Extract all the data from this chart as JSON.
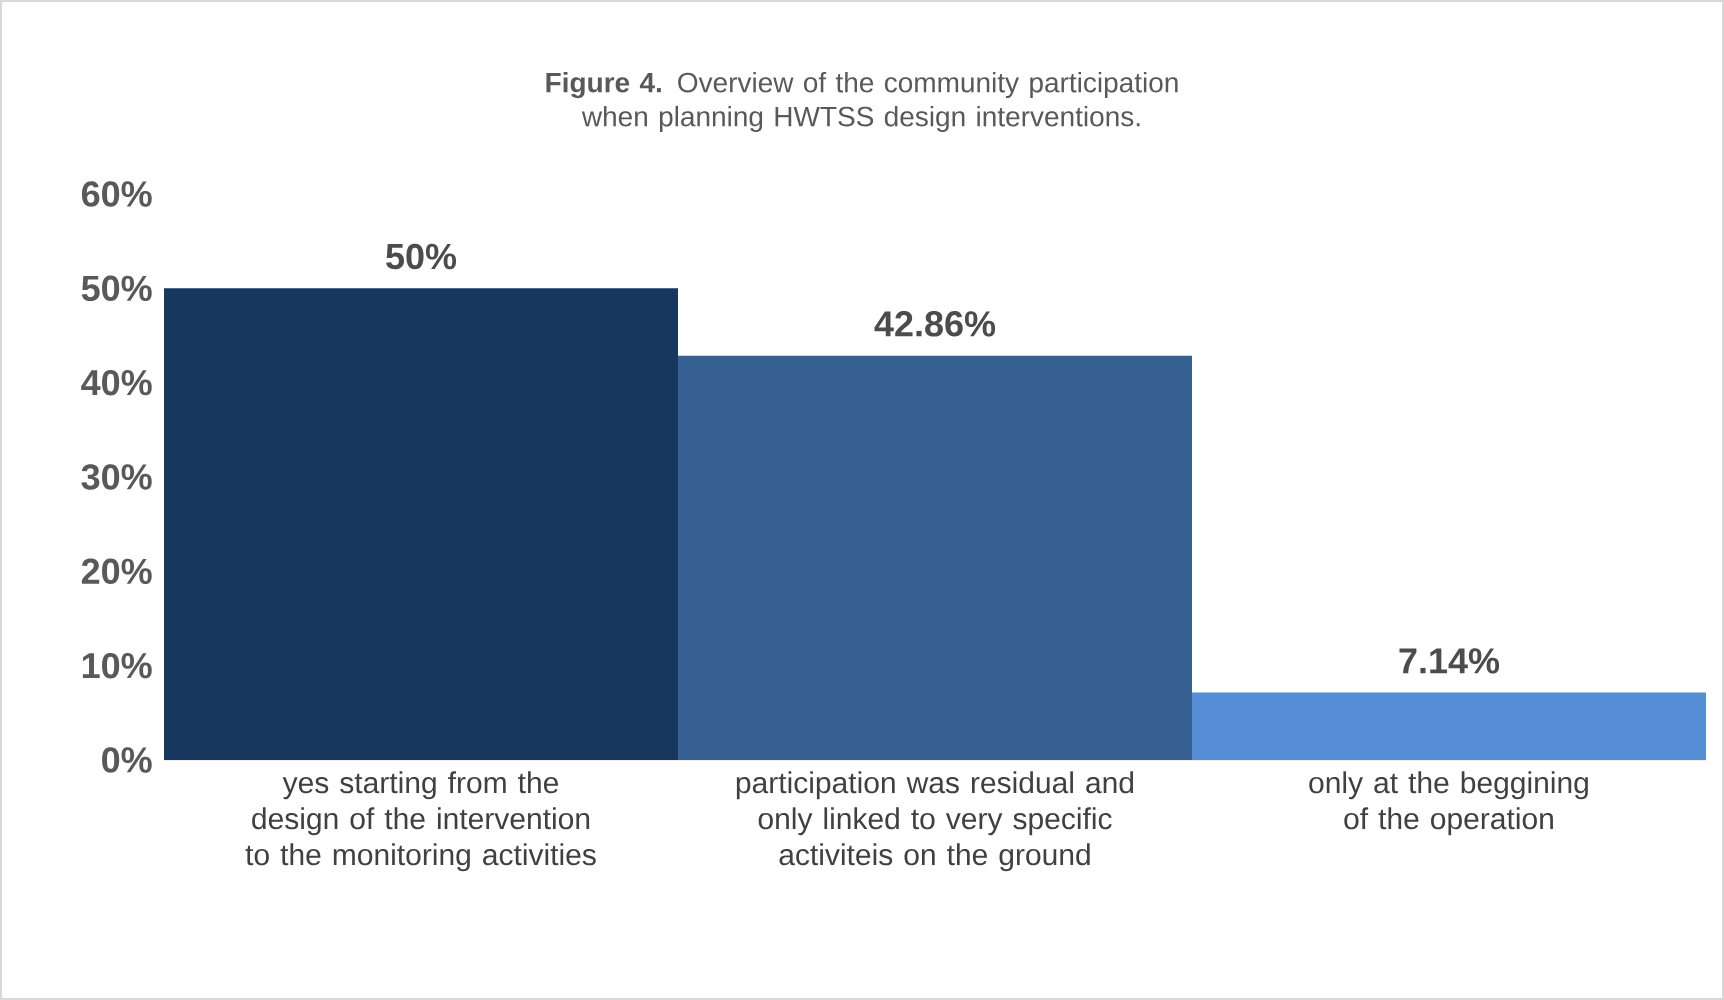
{
  "chart_data": {
    "type": "bar",
    "title": "**Figure 4.** Overview of the community participation when planning HWTSS design interventions.",
    "categories": [
      "yes starting from the design of the intervention to the monitoring activities",
      "participation was residual and only linked to very specific activiteis on the ground",
      "only at the beggining of the operation"
    ],
    "values": [
      50,
      42.86,
      7.14
    ],
    "colors": [
      "#17375e",
      "#376092",
      "#558ed5"
    ],
    "value_labels": [
      "50%",
      "42.86%",
      "7.14%"
    ],
    "ylim": [
      0,
      60
    ],
    "yticks": [
      {
        "value": 0,
        "label": "0%"
      },
      {
        "value": 10,
        "label": "10%"
      },
      {
        "value": 20,
        "label": "20%"
      },
      {
        "value": 30,
        "label": "30%"
      },
      {
        "value": 40,
        "label": "40%"
      },
      {
        "value": 50,
        "label": "50%"
      },
      {
        "value": 60,
        "label": "60%"
      }
    ]
  }
}
